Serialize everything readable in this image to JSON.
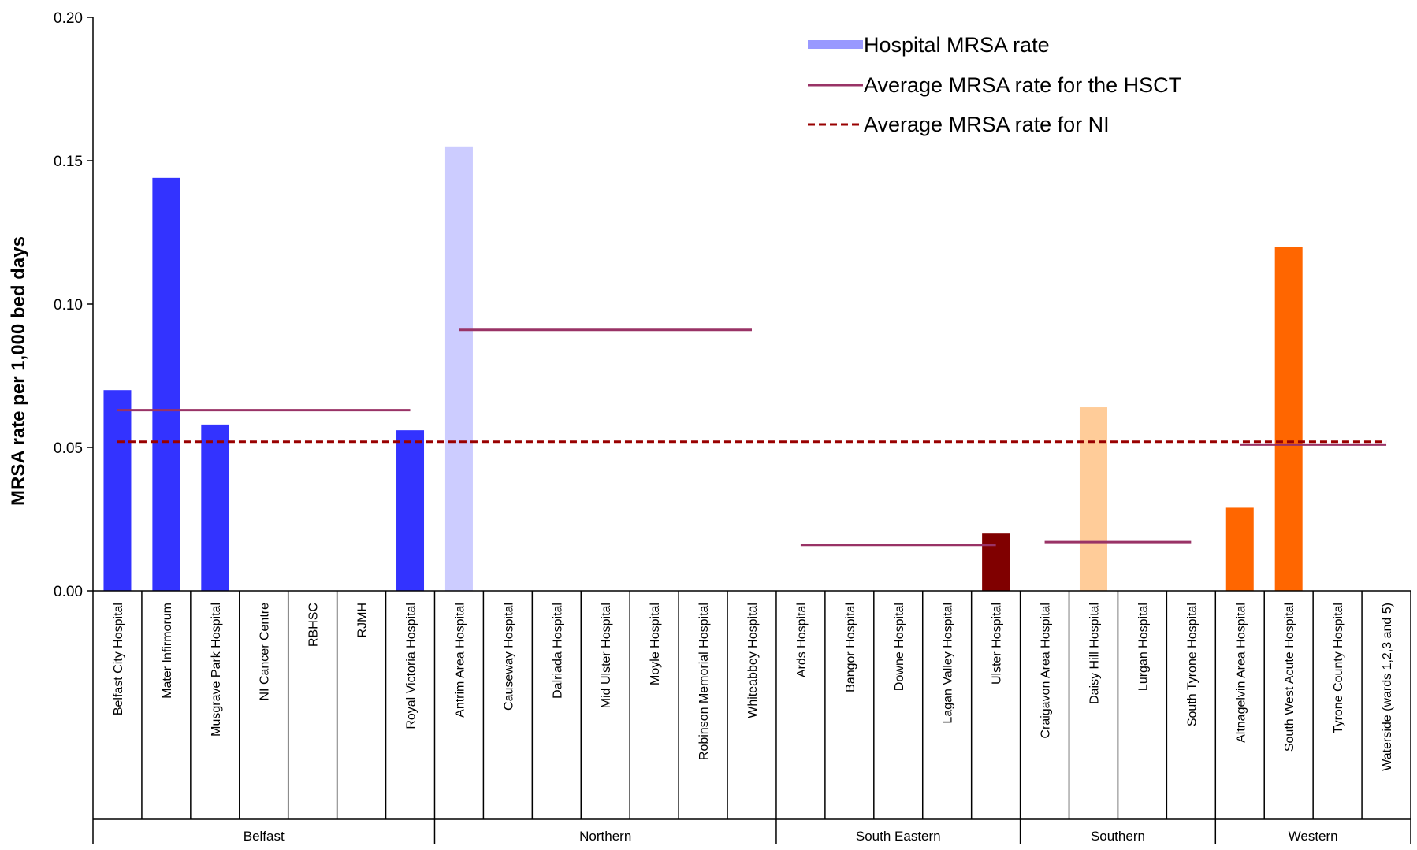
{
  "chart_data": {
    "type": "bar",
    "ylabel": "MRSA rate per 1,000 bed days",
    "xlabel": "",
    "ylim": [
      0,
      0.2
    ],
    "yticks": [
      "0.00",
      "0.05",
      "0.10",
      "0.15",
      "0.20"
    ],
    "legend": {
      "position": "top-right",
      "entries": [
        {
          "label": "Hospital MRSA rate",
          "style": "bar",
          "color": "#9999ff"
        },
        {
          "label": "Average MRSA rate for the HSCT",
          "style": "solid-line",
          "color": "#993366"
        },
        {
          "label": "Average MRSA rate for NI",
          "style": "dashed-line",
          "color": "#990000"
        }
      ]
    },
    "categories": [
      "Belfast City Hospital",
      "Mater Infirmorum",
      "Musgrave Park Hospital",
      "NI Cancer Centre",
      "RBHSC",
      "RJMH",
      "Royal Victoria Hospital",
      "Antrim Area Hospital",
      "Causeway Hospital",
      "Dalriada Hospital",
      "Mid Ulster Hospital",
      "Moyle Hospital",
      "Robinson Memorial Hospital",
      "Whiteabbey Hospital",
      "Ards Hospital",
      "Bangor Hospital",
      "Downe Hospital",
      "Lagan Valley Hospital",
      "Ulster Hospital",
      "Craigavon Area Hospital",
      "Daisy Hill Hospital",
      "Lurgan Hospital",
      "South Tyrone Hospital",
      "Altnagelvin Area Hospital",
      "South West Acute Hospital",
      "Tyrone County Hospital",
      "Waterside (wards 1,2,3 and 5)"
    ],
    "values": [
      0.07,
      0.144,
      0.058,
      0,
      0,
      0,
      0.056,
      0.155,
      0,
      0,
      0,
      0,
      0,
      0,
      0,
      0,
      0,
      0,
      0.02,
      0,
      0.064,
      0,
      0,
      0.029,
      0.12,
      0,
      0
    ],
    "groups": [
      {
        "name": "Belfast",
        "start": 0,
        "end": 6,
        "hsct_avg": 0.063,
        "color": "#3333ff"
      },
      {
        "name": "Northern",
        "start": 7,
        "end": 13,
        "hsct_avg": 0.091,
        "color": "#ccccff"
      },
      {
        "name": "South Eastern",
        "start": 14,
        "end": 18,
        "hsct_avg": 0.016,
        "color": "#800000"
      },
      {
        "name": "Southern",
        "start": 19,
        "end": 22,
        "hsct_avg": 0.017,
        "color": "#ffcc99"
      },
      {
        "name": "Western",
        "start": 23,
        "end": 26,
        "hsct_avg": 0.051,
        "color": "#ff6600"
      }
    ],
    "ni_avg": 0.052
  }
}
